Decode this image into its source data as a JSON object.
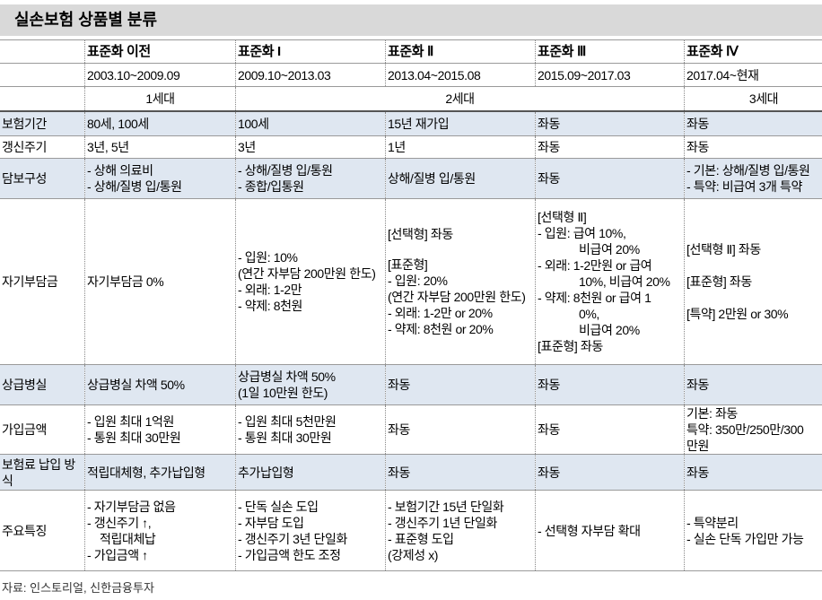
{
  "header": {
    "title": "실손보험 상품별 분류"
  },
  "table": {
    "columns": [
      {
        "name": "표준화 이전",
        "period": "2003.10~2009.09"
      },
      {
        "name": "표준화 I",
        "period": "2009.10~2013.03"
      },
      {
        "name": "표준화 Ⅱ",
        "period": "2013.04~2015.08"
      },
      {
        "name": "표준화 Ⅲ",
        "period": "2015.09~2017.03"
      },
      {
        "name": "표준화 Ⅳ",
        "period": "2017.04~현재"
      }
    ],
    "generations": [
      "1세대",
      "2세대",
      "3세대"
    ],
    "rows": [
      {
        "label": "보험기간",
        "cells": [
          [
            "80세, 100세"
          ],
          [
            "100세"
          ],
          [
            "15년 재가입"
          ],
          [
            "좌동"
          ],
          [
            "좌동"
          ]
        ]
      },
      {
        "label": "갱신주기",
        "cells": [
          [
            "3년, 5년"
          ],
          [
            "3년"
          ],
          [
            "1년"
          ],
          [
            "좌동"
          ],
          [
            "좌동"
          ]
        ]
      },
      {
        "label": "담보구성",
        "cells": [
          [
            "- 상해 의료비",
            "- 상해/질병 입/통원"
          ],
          [
            "- 상해/질병 입/통원",
            "- 종합/입통원"
          ],
          [
            "상해/질병 입/통원"
          ],
          [
            "좌동"
          ],
          [
            "- 기본: 상해/질병 입/통원",
            "- 특약: 비급여 3개 특약"
          ]
        ]
      },
      {
        "label": "자기부담금",
        "cells": [
          [
            "자기부담금 0%"
          ],
          [
            "- 입원: 10%",
            "(연간 자부담 200만원 한도)",
            "- 외래: 1-2만",
            "- 약제: 8천원"
          ],
          [
            "[선택형] 좌동",
            "[표준형]",
            "- 입원: 20%",
            "(연간 자부담 200만원 한도)",
            "- 외래: 1-2만 or 20%",
            "- 약제: 8천원 or 20%"
          ],
          [
            "[선택형 Ⅱ]",
            "- 입원: 급여 10%,",
            "비급여 20%",
            "- 외래: 1-2만원 or 급여",
            "10%, 비급여 20%",
            "- 약제: 8천원 or 급여 1",
            "0%,",
            "비급여 20%",
            "[표준형] 좌동"
          ],
          [
            "[선택형 Ⅱ] 좌동",
            "[표준형] 좌동",
            "[특약] 2만원 or 30%"
          ]
        ]
      },
      {
        "label": "상급병실",
        "cells": [
          [
            "상급병실 차액 50%"
          ],
          [
            "상급병실 차액 50%",
            "(1일 10만원 한도)"
          ],
          [
            "좌동"
          ],
          [
            "좌동"
          ],
          [
            "좌동"
          ]
        ]
      },
      {
        "label": "가입금액",
        "cells": [
          [
            "- 입원 최대 1억원",
            "- 통원 최대 30만원"
          ],
          [
            "- 입원 최대 5천만원",
            "- 통원 최대 30만원"
          ],
          [
            "좌동"
          ],
          [
            "좌동"
          ],
          [
            "기본: 좌동",
            "특약: 350만/250만/300",
            "만원"
          ]
        ]
      },
      {
        "label": "보험료 납입 방식",
        "cells": [
          [
            "적립대체형, 추가납입형"
          ],
          [
            "추가납입형"
          ],
          [
            "좌동"
          ],
          [
            "좌동"
          ],
          [
            "좌동"
          ]
        ]
      },
      {
        "label": "주요특징",
        "cells": [
          [
            "- 자기부담금 없음",
            "- 갱신주기 ↑,",
            "적립대체납",
            "- 가입금액 ↑"
          ],
          [
            "- 단독 실손 도입",
            "- 자부담 도입",
            "- 갱신주기 3년 단일화",
            "- 가입금액 한도 조정"
          ],
          [
            "- 보험기간 15년 단일화",
            "- 갱신주기 1년 단일화",
            "- 표준형 도입",
            "(강제성 x)"
          ],
          [
            "- 선택형 자부담 확대"
          ],
          [
            "- 특약분리",
            "- 실손 단독 가입만 가능"
          ]
        ]
      }
    ]
  },
  "source": "자료: 인스토리얼, 신한금융투자"
}
